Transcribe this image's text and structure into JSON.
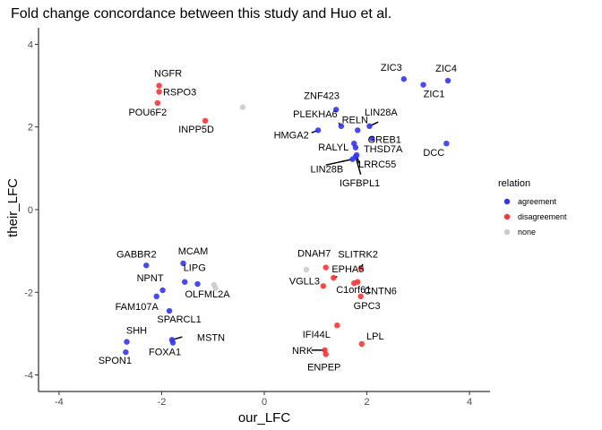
{
  "chart_data": {
    "type": "scatter",
    "title": "Fold change concordance between this study and Huo et al.",
    "xlabel": "our_LFC",
    "ylabel": "their_LFC",
    "xlim": [
      -4.4,
      4.4
    ],
    "ylim": [
      -4.4,
      4.4
    ],
    "xticks": [
      -4,
      -2,
      0,
      2,
      4
    ],
    "yticks": [
      -4,
      -2,
      0,
      2,
      4
    ],
    "grid": false,
    "legend": {
      "title": "relation",
      "position": "right",
      "entries": [
        {
          "key": "agreement",
          "label": "agreement",
          "color": "#3333ff"
        },
        {
          "key": "disagreement",
          "label": "disagreement",
          "color": "#ff3333"
        },
        {
          "key": "none",
          "label": "none",
          "color": "#cccccc"
        }
      ]
    },
    "points": [
      {
        "label": "ZIC3",
        "x": 2.72,
        "y": 3.16,
        "relation": "agreement"
      },
      {
        "label": "ZIC4",
        "x": 3.58,
        "y": 3.12,
        "relation": "agreement"
      },
      {
        "label": "ZIC1",
        "x": 3.1,
        "y": 3.02,
        "relation": "agreement"
      },
      {
        "label": "ZNF423",
        "x": 1.4,
        "y": 2.42,
        "relation": "agreement"
      },
      {
        "label": "PLEKHA6",
        "x": 1.5,
        "y": 2.02,
        "relation": "agreement"
      },
      {
        "label": "RELN",
        "x": 1.82,
        "y": 1.92,
        "relation": "agreement"
      },
      {
        "label": "LIN28A",
        "x": 2.05,
        "y": 2.02,
        "relation": "agreement"
      },
      {
        "label": "HMGA2",
        "x": 1.05,
        "y": 1.92,
        "relation": "agreement"
      },
      {
        "label": "GREB1",
        "x": 2.1,
        "y": 1.72,
        "relation": "agreement"
      },
      {
        "label": "DCC",
        "x": 3.55,
        "y": 1.6,
        "relation": "agreement"
      },
      {
        "label": "RALYL",
        "x": 1.75,
        "y": 1.6,
        "relation": "agreement"
      },
      {
        "label": "THSD7A",
        "x": 1.78,
        "y": 1.5,
        "relation": "agreement"
      },
      {
        "label": "LRRC55",
        "x": 1.8,
        "y": 1.32,
        "relation": "agreement"
      },
      {
        "label": "LIN28B",
        "x": 1.72,
        "y": 1.22,
        "relation": "agreement"
      },
      {
        "label": "IGFBPL1",
        "x": 1.78,
        "y": 1.28,
        "relation": "agreement"
      },
      {
        "label": "NGFR",
        "x": -2.05,
        "y": 3.0,
        "relation": "disagreement"
      },
      {
        "label": "RSPO3",
        "x": -2.05,
        "y": 2.85,
        "relation": "disagreement"
      },
      {
        "label": "POU6F2",
        "x": -2.08,
        "y": 2.58,
        "relation": "disagreement"
      },
      {
        "label": "INPP5D",
        "x": -1.15,
        "y": 2.15,
        "relation": "disagreement"
      },
      {
        "label": "",
        "x": -0.42,
        "y": 2.48,
        "relation": "none"
      },
      {
        "label": "GABBR2",
        "x": -2.3,
        "y": -1.35,
        "relation": "agreement"
      },
      {
        "label": "MCAM",
        "x": -1.58,
        "y": -1.3,
        "relation": "agreement"
      },
      {
        "label": "NPNT",
        "x": -1.98,
        "y": -1.95,
        "relation": "agreement"
      },
      {
        "label": "LIPG",
        "x": -1.55,
        "y": -1.75,
        "relation": "agreement"
      },
      {
        "label": "OLFML2A",
        "x": -1.3,
        "y": -1.8,
        "relation": "agreement"
      },
      {
        "label": "FAM107A",
        "x": -2.1,
        "y": -2.1,
        "relation": "agreement"
      },
      {
        "label": "SPARCL1",
        "x": -1.85,
        "y": -2.45,
        "relation": "agreement"
      },
      {
        "label": "SHH",
        "x": -2.68,
        "y": -3.2,
        "relation": "agreement"
      },
      {
        "label": "MSTN",
        "x": -1.8,
        "y": -3.15,
        "relation": "agreement"
      },
      {
        "label": "FOXA1",
        "x": -1.78,
        "y": -3.22,
        "relation": "agreement"
      },
      {
        "label": "SPON1",
        "x": -2.7,
        "y": -3.45,
        "relation": "agreement"
      },
      {
        "label": "",
        "x": -0.98,
        "y": -1.82,
        "relation": "none"
      },
      {
        "label": "",
        "x": -0.95,
        "y": -1.9,
        "relation": "none"
      },
      {
        "label": "DNAH7",
        "x": 1.2,
        "y": -1.4,
        "relation": "disagreement"
      },
      {
        "label": "SLITRK2",
        "x": 1.88,
        "y": -1.42,
        "relation": "disagreement"
      },
      {
        "label": "EPHA5",
        "x": 1.35,
        "y": -1.65,
        "relation": "disagreement"
      },
      {
        "label": "VGLL3",
        "x": 1.15,
        "y": -1.85,
        "relation": "disagreement"
      },
      {
        "label": "CNTN6",
        "x": 1.82,
        "y": -1.75,
        "relation": "disagreement"
      },
      {
        "label": "C1orf61",
        "x": 1.75,
        "y": -1.78,
        "relation": "disagreement"
      },
      {
        "label": "GPC3",
        "x": 1.88,
        "y": -2.1,
        "relation": "disagreement"
      },
      {
        "label": "",
        "x": 0.82,
        "y": -1.45,
        "relation": "none"
      },
      {
        "label": "IFI44L",
        "x": 1.42,
        "y": -2.8,
        "relation": "disagreement"
      },
      {
        "label": "LPL",
        "x": 1.9,
        "y": -3.25,
        "relation": "disagreement"
      },
      {
        "label": "NRK",
        "x": 1.18,
        "y": -3.4,
        "relation": "disagreement"
      },
      {
        "label": "ENPEP",
        "x": 1.2,
        "y": -3.5,
        "relation": "disagreement"
      }
    ]
  }
}
